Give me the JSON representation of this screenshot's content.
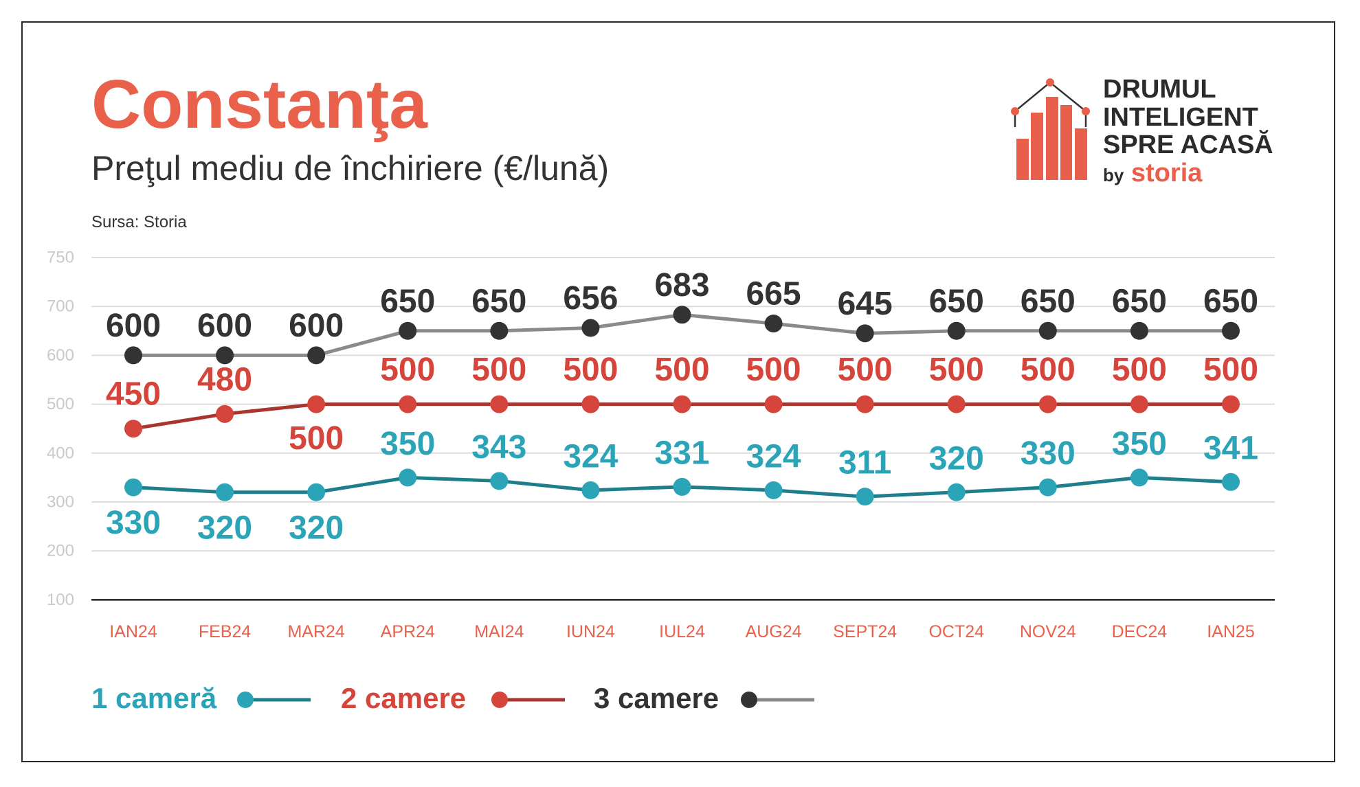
{
  "title": "Constanţa",
  "subtitle": "Preţul mediu de închiriere (€/lună)",
  "source": "Sursa: Storia",
  "logo": {
    "line1": "DRUMUL",
    "line2": "INTELIGENT",
    "line3": "SPRE ACASĂ",
    "by": "by",
    "brand": "storia"
  },
  "colors": {
    "title": "#e9604b",
    "axis_label": "#e9604b",
    "logo_bars": "#e8604c",
    "logo_roof": "#333333",
    "brand": "#e8604c"
  },
  "chart_data": {
    "type": "line",
    "title": "Preţul mediu de închiriere (€/lună)",
    "xlabel": "",
    "ylabel": "",
    "ylim": [
      100,
      750
    ],
    "y_ticks": [
      750,
      700,
      600,
      500,
      400,
      300,
      200,
      100
    ],
    "grid": true,
    "legend": "bottom-left",
    "categories": [
      "IAN24",
      "FEB24",
      "MAR24",
      "APR24",
      "MAI24",
      "IUN24",
      "IUL24",
      "AUG24",
      "SEPT24",
      "OCT24",
      "NOV24",
      "DEC24",
      "IAN25"
    ],
    "series": [
      {
        "name": "1 cameră",
        "values": [
          330,
          320,
          320,
          350,
          343,
          324,
          331,
          324,
          311,
          320,
          330,
          350,
          341
        ],
        "color": "#2aa4b6",
        "line_color": "#1f7e8c",
        "label_positions": [
          "below",
          "below",
          "below",
          "above",
          "above",
          "above",
          "above",
          "above",
          "above",
          "above",
          "above",
          "above",
          "above"
        ]
      },
      {
        "name": "2 camere",
        "values": [
          450,
          480,
          500,
          500,
          500,
          500,
          500,
          500,
          500,
          500,
          500,
          500,
          500
        ],
        "color": "#d6453b",
        "line_color": "#a8352e",
        "label_positions": [
          "above",
          "above",
          "below",
          "above",
          "above",
          "above",
          "above",
          "above",
          "above",
          "above",
          "above",
          "above",
          "above"
        ]
      },
      {
        "name": "3 camere",
        "values": [
          600,
          600,
          600,
          650,
          650,
          656,
          683,
          665,
          645,
          650,
          650,
          650,
          650
        ],
        "color": "#333333",
        "line_color": "#8a8a8a",
        "label_positions": [
          "above",
          "above",
          "above",
          "above",
          "above",
          "above",
          "above",
          "above",
          "above",
          "above",
          "above",
          "above",
          "above"
        ]
      }
    ]
  }
}
